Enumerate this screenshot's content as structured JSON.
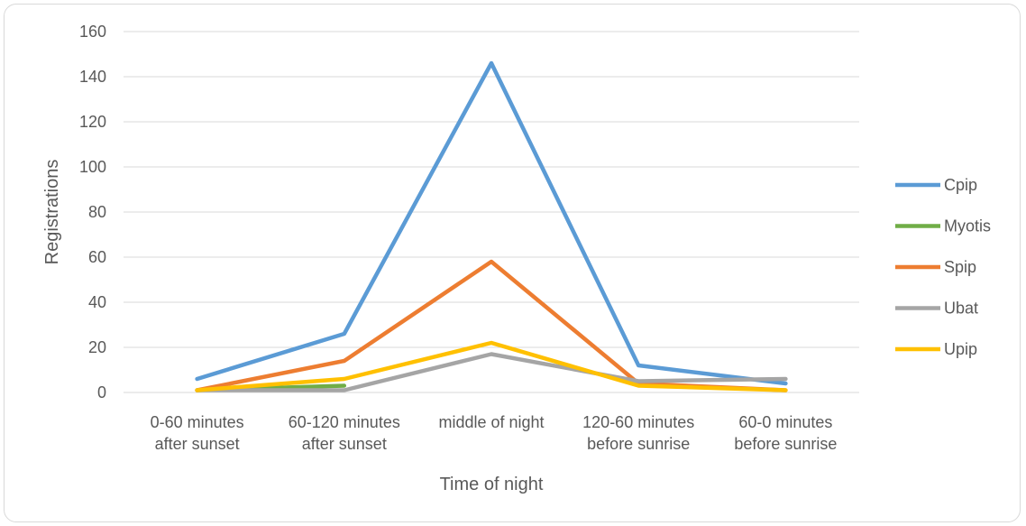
{
  "chart_data": {
    "type": "line",
    "title": "",
    "xlabel": "Time of night",
    "ylabel": "Registrations",
    "ylim": [
      0,
      160
    ],
    "yticks": [
      0,
      20,
      40,
      60,
      80,
      100,
      120,
      140,
      160
    ],
    "grid": true,
    "legend_position": "right",
    "categories": [
      [
        "0-60 minutes",
        "after sunset"
      ],
      [
        "60-120 minutes",
        "after sunset"
      ],
      [
        "middle of night"
      ],
      [
        "120-60 minutes",
        "before sunrise"
      ],
      [
        "60-0 minutes",
        "before sunrise"
      ]
    ],
    "series": [
      {
        "name": "Cpip",
        "color": "#5B9BD5",
        "values": [
          6,
          26,
          146,
          12,
          4
        ]
      },
      {
        "name": "Myotis",
        "color": "#70AD47",
        "values": [
          1,
          3,
          null,
          null,
          null
        ]
      },
      {
        "name": "Spip",
        "color": "#ED7D31",
        "values": [
          1,
          14,
          58,
          4,
          1
        ]
      },
      {
        "name": "Ubat",
        "color": "#A5A5A5",
        "values": [
          1,
          1,
          17,
          5,
          6
        ]
      },
      {
        "name": "Upip",
        "color": "#FFC000",
        "values": [
          1,
          6,
          22,
          3,
          1
        ]
      }
    ]
  }
}
